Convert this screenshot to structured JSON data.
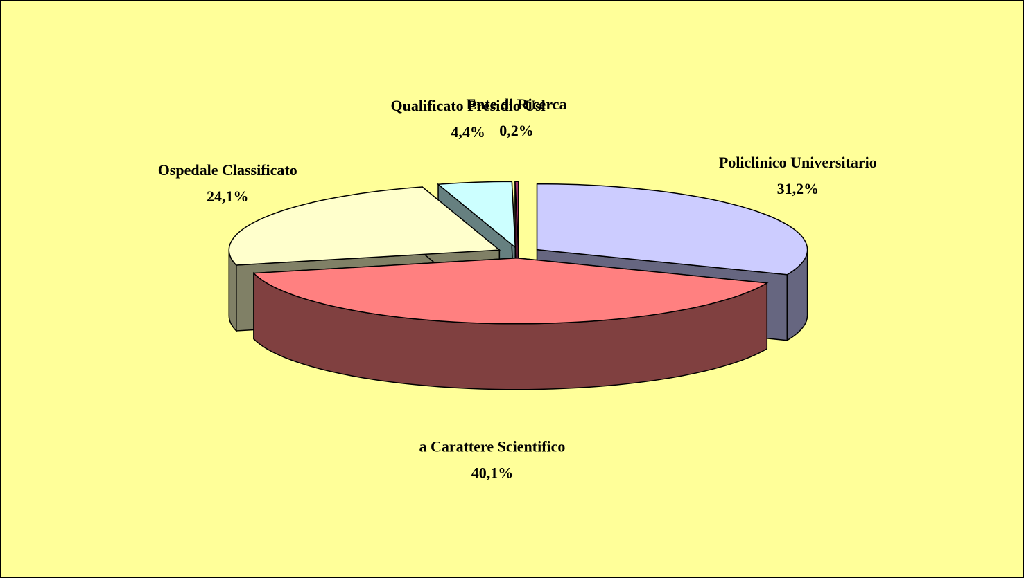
{
  "chart_data": {
    "type": "pie3d",
    "categories": [
      "Policlinico Universitario",
      "a Carattere Scientifico",
      "Ospedale Classificato",
      "Qualificato Presidio Usl",
      "Ente di Ricerca"
    ],
    "values": [
      31.2,
      40.1,
      24.1,
      4.4,
      0.2
    ],
    "value_labels": [
      "31,2%",
      "40,1%",
      "24,1%",
      "4,4%",
      "0,2%"
    ],
    "colors": [
      "#ccccff",
      "#ff8080",
      "#ffffcc",
      "#ccffff",
      "#993366"
    ],
    "background": "#ffff99"
  }
}
